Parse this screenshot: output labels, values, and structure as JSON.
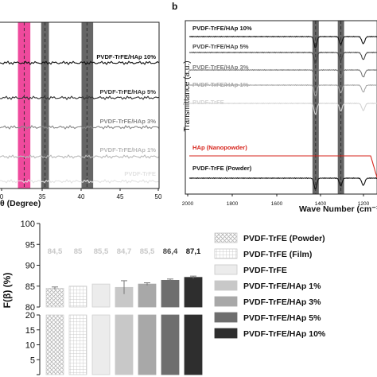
{
  "chart_data": [
    {
      "type": "line",
      "panel_label": "",
      "xlabel": "θ (Degree)",
      "x_ticks": [
        "0",
        "35",
        "40",
        "45",
        "50"
      ],
      "highlight_bands": [
        {
          "from": 31.8,
          "to": 33.4,
          "color": "#ec2a8c",
          "center": 32.6
        },
        {
          "from": 34.8,
          "to": 35.8,
          "color": "#555555",
          "center": 35.3
        },
        {
          "from": 40.0,
          "to": 41.5,
          "color": "#555555",
          "center": 40.7
        }
      ],
      "series": [
        {
          "name": "PVDF-TrFE/HAp 10%",
          "color": "#111111",
          "offset": 5
        },
        {
          "name": "PVDF-TrFE/HAp 5%",
          "color": "#333333",
          "offset": 4
        },
        {
          "name": "PVDF-TrFE/HAp 3%",
          "color": "#888888",
          "offset": 3
        },
        {
          "name": "PVDF-TrFE/HAp 1%",
          "color": "#b9b9b9",
          "offset": 2
        },
        {
          "name": "PVDF-TrFE",
          "color": "#e2e2e2",
          "offset": 1
        }
      ]
    },
    {
      "type": "line",
      "panel_label": "b",
      "xlabel": "Wave Number (cm⁻¹)",
      "ylabel": "Transmittance (a.u.)",
      "xlim": [
        2000,
        1100
      ],
      "x_ticks": [
        "2000",
        "1800",
        "1600",
        "1400",
        "1200"
      ],
      "highlight_bands": [
        {
          "from": 1416,
          "to": 1386,
          "color": "#555555"
        },
        {
          "from": 1296,
          "to": 1266,
          "color": "#555555"
        },
        {
          "from": 1112,
          "to": 1102,
          "color": "#555555"
        },
        {
          "from": 1100,
          "to": 1096,
          "color": "#ec2a8c"
        }
      ],
      "series": [
        {
          "name": "PVDF-TrFE/HAp 10%",
          "color": "#111111"
        },
        {
          "name": "PVDF-TrFE/HAp 5%",
          "color": "#444444"
        },
        {
          "name": "PVDF-TrFE/HAp 3%",
          "color": "#7a7a7a"
        },
        {
          "name": "PVDF-TrFE/HAp 1%",
          "color": "#a8a8a8"
        },
        {
          "name": "PVDF-TrFE",
          "color": "#d4d4d4"
        },
        {
          "name": "HAp (Nanopowder)",
          "color": "#d7261e"
        },
        {
          "name": "PVDF-TrFE (Powder)",
          "color": "#111111"
        }
      ]
    },
    {
      "type": "bar",
      "ylabel": "F(β) (%)",
      "y_ticks_upper": [
        80,
        85,
        90,
        95,
        100
      ],
      "y_ticks_lower": [
        0,
        5,
        10,
        15,
        20
      ],
      "categories": [
        "PVDF-TrFE (Powder)",
        "PVDF-TrFE (Film)",
        "PVDF-TrFE",
        "PVDF-TrFE/HAp 1%",
        "PVDF-TrFE/HAp 3%",
        "PVDF-TrFE/HAp 5%",
        "PVDF-TrFE/HAp 10%"
      ],
      "values": [
        84.5,
        85,
        85.5,
        84.7,
        85.5,
        86.4,
        87.1
      ],
      "value_labels": [
        "84,5",
        "85",
        "85,5",
        "84,7",
        "85,5",
        "86,4",
        "87,1"
      ],
      "errors": [
        0.3,
        0,
        0,
        1.6,
        0.3,
        0.3,
        0.3
      ],
      "colors": [
        "#ffffff",
        "#ffffff",
        "#ececec",
        "#c8c8c8",
        "#a8a8a8",
        "#6e6e6e",
        "#2e2e2e"
      ],
      "patterns": [
        "crosshatch",
        "grid",
        "solid",
        "solid",
        "solid",
        "solid",
        "solid"
      ],
      "label_colors": [
        "#c8c8c8",
        "#c8c8c8",
        "#c8c8c8",
        "#c8c8c8",
        "#c8c8c8",
        "#444444",
        "#111111"
      ]
    }
  ]
}
